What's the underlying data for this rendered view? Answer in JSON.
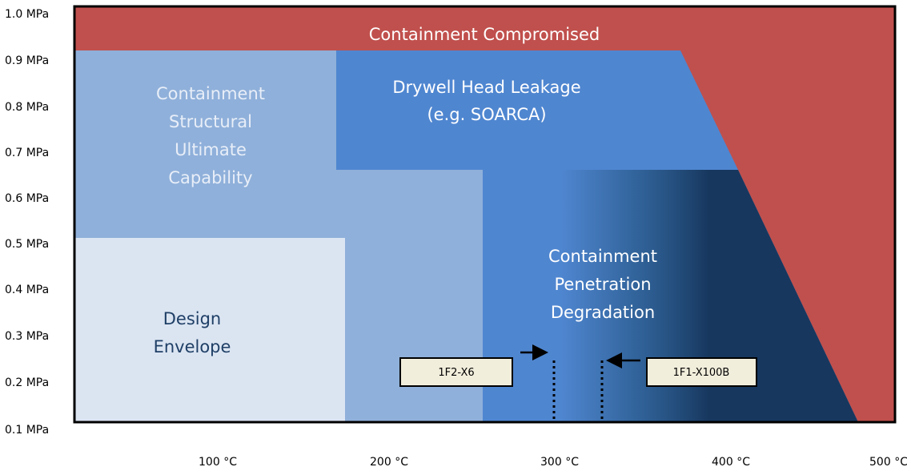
{
  "y_axis_labels": [
    "1.0 MPa",
    "0.9 MPa",
    "0.8 MPa",
    "0.7 MPa",
    "0.6 MPa",
    "0.5 MPa",
    "0.4 MPa",
    "0.3 MPa",
    "0.2 MPa",
    "0.1 MPa"
  ],
  "x_axis_labels": [
    "100 °C",
    "200 °C",
    "300 °C",
    "400 °C",
    "500 °C"
  ],
  "regions": {
    "compromised": [
      "Containment Compromised"
    ],
    "structural": [
      "Containment",
      "Structural",
      "Ultimate",
      "Capability"
    ],
    "drywell": [
      "Drywell Head Leakage",
      "(e.g. SOARCA)"
    ],
    "penetration": [
      "Containment",
      "Penetration",
      "Degradation"
    ],
    "design": [
      "Design",
      "Envelope"
    ]
  },
  "markers": [
    "1F2-X6",
    "1F1-X100B"
  ]
}
